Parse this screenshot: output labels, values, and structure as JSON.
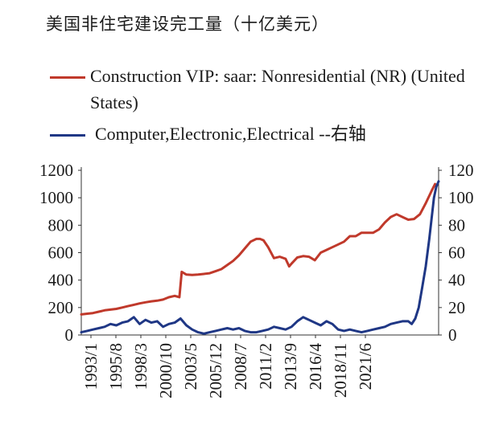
{
  "chart_data": {
    "type": "line",
    "title": "美国非住宅建设完工量（十亿美元）",
    "xlabel": "",
    "ylabel_left": "",
    "ylabel_right": "",
    "x_tick_labels": [
      "1993/1",
      "1995/8",
      "1998/3",
      "2000/10",
      "2003/5",
      "2005/12",
      "2008/7",
      "2011/2",
      "2013/9",
      "2016/4",
      "2018/11",
      "2021/6"
    ],
    "x_range": [
      1993.0,
      2023.6
    ],
    "y_left": {
      "ticks": [
        "0",
        "200",
        "400",
        "600",
        "800",
        "1000",
        "1200"
      ],
      "range": [
        0,
        1200
      ]
    },
    "y_right": {
      "ticks": [
        "0",
        "20",
        "40",
        "60",
        "80",
        "100",
        "120"
      ],
      "range": [
        0,
        120
      ]
    },
    "colors": {
      "construction": "#c0392b",
      "computer": "#1f3785"
    },
    "series": [
      {
        "name": "Construction VIP: saar: Nonresidential (NR) (United States)",
        "axis": "left",
        "x": [
          1993.0,
          1993.5,
          1994.0,
          1994.5,
          1995.0,
          1995.5,
          1996.0,
          1996.5,
          1997.0,
          1997.5,
          1998.0,
          1998.5,
          1999.0,
          1999.5,
          2000.0,
          2000.5,
          2001.0,
          2001.3,
          2001.4,
          2001.6,
          2002.0,
          2002.5,
          2003.0,
          2003.5,
          2004.0,
          2004.5,
          2005.0,
          2005.5,
          2006.0,
          2006.5,
          2007.0,
          2007.5,
          2008.0,
          2008.3,
          2008.6,
          2009.0,
          2009.5,
          2010.0,
          2010.5,
          2010.8,
          2011.0,
          2011.5,
          2012.0,
          2012.5,
          2013.0,
          2013.5,
          2014.0,
          2014.5,
          2015.0,
          2015.5,
          2016.0,
          2016.5,
          2017.0,
          2017.5,
          2018.0,
          2018.5,
          2019.0,
          2019.5,
          2020.0,
          2020.5,
          2021.0,
          2021.5,
          2022.0,
          2022.5,
          2023.0,
          2023.3
        ],
        "values": [
          150,
          155,
          160,
          170,
          180,
          185,
          190,
          200,
          210,
          220,
          230,
          238,
          245,
          250,
          258,
          275,
          285,
          278,
          275,
          460,
          440,
          438,
          440,
          445,
          450,
          465,
          480,
          510,
          540,
          580,
          630,
          680,
          700,
          700,
          690,
          640,
          560,
          570,
          555,
          500,
          520,
          565,
          575,
          570,
          545,
          600,
          620,
          640,
          660,
          680,
          720,
          720,
          745,
          745,
          745,
          770,
          820,
          860,
          880,
          860,
          840,
          845,
          880,
          960,
          1050,
          1100
        ]
      },
      {
        "name": "Computer,Electronic,Electrical --右轴",
        "axis": "right",
        "x": [
          1993.0,
          1993.5,
          1994.0,
          1994.5,
          1995.0,
          1995.5,
          1996.0,
          1996.5,
          1997.0,
          1997.5,
          1998.0,
          1998.5,
          1999.0,
          1999.5,
          2000.0,
          2000.5,
          2001.0,
          2001.5,
          2002.0,
          2002.5,
          2003.0,
          2003.5,
          2004.0,
          2004.5,
          2005.0,
          2005.5,
          2006.0,
          2006.5,
          2007.0,
          2007.5,
          2008.0,
          2008.5,
          2009.0,
          2009.5,
          2010.0,
          2010.5,
          2011.0,
          2011.5,
          2012.0,
          2012.5,
          2013.0,
          2013.5,
          2014.0,
          2014.5,
          2015.0,
          2015.5,
          2016.0,
          2016.5,
          2017.0,
          2017.5,
          2018.0,
          2018.5,
          2019.0,
          2019.5,
          2020.0,
          2020.5,
          2021.0,
          2021.3,
          2021.6,
          2021.9,
          2022.2,
          2022.5,
          2022.8,
          2023.0,
          2023.2,
          2023.4,
          2023.6
        ],
        "values": [
          2,
          3,
          4,
          5,
          6,
          8,
          7,
          9,
          10,
          13,
          8,
          11,
          9,
          10,
          6,
          8,
          9,
          12,
          7,
          4,
          2,
          1,
          2,
          3,
          4,
          5,
          4,
          5,
          3,
          2,
          2,
          3,
          4,
          6,
          5,
          4,
          6,
          10,
          13,
          11,
          9,
          7,
          10,
          8,
          4,
          3,
          4,
          3,
          2,
          3,
          4,
          5,
          6,
          8,
          9,
          10,
          10,
          8,
          12,
          20,
          35,
          50,
          70,
          85,
          100,
          108,
          112
        ]
      }
    ]
  }
}
